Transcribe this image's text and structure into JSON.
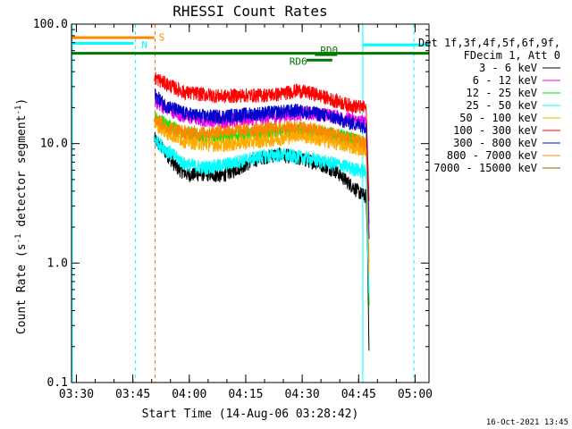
{
  "chart_data": {
    "type": "line",
    "title": "RHESSI Count Rates",
    "xlabel": "Start Time (14-Aug-06 03:28:42)",
    "ylabel_main": "Count Rate (s",
    "ylabel_sup1": "-1",
    "ylabel_mid": " detector segment",
    "ylabel_sup2": "-1",
    "ylabel_end": ")",
    "yscale": "log",
    "xlim_minutes": [
      0,
      95
    ],
    "ylim": [
      0.1,
      100
    ],
    "xticks": [
      {
        "label": "03:30",
        "m": 1.3
      },
      {
        "label": "03:45",
        "m": 16.3
      },
      {
        "label": "04:00",
        "m": 31.3
      },
      {
        "label": "04:15",
        "m": 46.3
      },
      {
        "label": "04:30",
        "m": 61.3
      },
      {
        "label": "04:45",
        "m": 76.3
      },
      {
        "label": "05:00",
        "m": 91.3
      }
    ],
    "yticks": [
      {
        "label": "100.0",
        "v": 100
      },
      {
        "label": "10.0",
        "v": 10
      },
      {
        "label": "1.0",
        "v": 1
      },
      {
        "label": "0.1",
        "v": 0.1
      }
    ],
    "legend_header": [
      "Det 1f,3f,4f,5f,6f,9f,",
      "FDecim 1, Att 0"
    ],
    "series": [
      {
        "name": "3 - 6 keV",
        "color": "#000000",
        "start": 21.8,
        "points": [
          [
            22,
            11
          ],
          [
            25,
            8.5
          ],
          [
            28,
            6.3
          ],
          [
            31,
            5.5
          ],
          [
            35,
            5.6
          ],
          [
            40,
            5.4
          ],
          [
            44,
            6.2
          ],
          [
            50,
            7.6
          ],
          [
            55,
            8.2
          ],
          [
            60,
            7.6
          ],
          [
            65,
            7.0
          ],
          [
            70,
            6.0
          ],
          [
            74,
            4.6
          ],
          [
            77,
            3.8
          ],
          [
            78.3,
            3.6
          ],
          [
            78.7,
            1.2
          ],
          [
            79.1,
            0.15
          ]
        ]
      },
      {
        "name": "6 - 12 keV",
        "color": "#ee00ee",
        "start": 22.2,
        "points": [
          [
            22,
            23
          ],
          [
            25,
            20
          ],
          [
            30,
            17
          ],
          [
            35,
            16
          ],
          [
            40,
            15.5
          ],
          [
            45,
            16
          ],
          [
            50,
            16.5
          ],
          [
            55,
            17
          ],
          [
            60,
            18
          ],
          [
            65,
            18
          ],
          [
            70,
            17
          ],
          [
            74,
            16
          ],
          [
            78.3,
            15
          ],
          [
            78.7,
            6
          ],
          [
            79.1,
            2
          ]
        ]
      },
      {
        "name": "12 - 25 keV",
        "color": "#00ee00",
        "start": 22.2,
        "points": [
          [
            22,
            17
          ],
          [
            25,
            14.5
          ],
          [
            30,
            12.5
          ],
          [
            35,
            11.5
          ],
          [
            40,
            11.5
          ],
          [
            45,
            12
          ],
          [
            50,
            12.3
          ],
          [
            55,
            12.5
          ],
          [
            60,
            13
          ],
          [
            65,
            12.5
          ],
          [
            70,
            12
          ],
          [
            74,
            11
          ],
          [
            78.3,
            10
          ],
          [
            78.7,
            3
          ],
          [
            79.1,
            0.4
          ]
        ]
      },
      {
        "name": "25 - 50 keV",
        "color": "#00ffff",
        "start": 22.0,
        "points": [
          [
            22,
            11
          ],
          [
            25,
            9
          ],
          [
            30,
            6.8
          ],
          [
            35,
            6.3
          ],
          [
            40,
            6.6
          ],
          [
            45,
            7.2
          ],
          [
            50,
            7.8
          ],
          [
            55,
            8.1
          ],
          [
            60,
            7.8
          ],
          [
            65,
            7.3
          ],
          [
            70,
            6.8
          ],
          [
            74,
            6.3
          ],
          [
            78.3,
            5.8
          ],
          [
            78.7,
            1.3
          ],
          [
            79.1,
            0.5
          ]
        ]
      },
      {
        "name": "50 - 100 keV",
        "color": "#ffaa00",
        "start": 22.0,
        "points": [
          [
            22,
            15
          ],
          [
            25,
            12.5
          ],
          [
            30,
            10.6
          ],
          [
            35,
            10
          ],
          [
            40,
            9.8
          ],
          [
            45,
            10.2
          ],
          [
            50,
            10.6
          ],
          [
            55,
            11
          ],
          [
            60,
            12
          ],
          [
            65,
            11
          ],
          [
            70,
            10.3
          ],
          [
            74,
            9.5
          ],
          [
            78.3,
            9
          ],
          [
            78.7,
            3
          ],
          [
            79.1,
            0.7
          ]
        ]
      },
      {
        "name": "100 - 300 keV",
        "color": "#ff0000",
        "start": 21.8,
        "points": [
          [
            22,
            36
          ],
          [
            25,
            32
          ],
          [
            30,
            27
          ],
          [
            35,
            26
          ],
          [
            40,
            25
          ],
          [
            45,
            25.5
          ],
          [
            50,
            25.5
          ],
          [
            55,
            26
          ],
          [
            60,
            28
          ],
          [
            65,
            26
          ],
          [
            70,
            23
          ],
          [
            74,
            21
          ],
          [
            78.3,
            20
          ],
          [
            78.7,
            8
          ],
          [
            79.1,
            3
          ]
        ]
      },
      {
        "name": "300 - 800 keV",
        "color": "#0000cc",
        "start": 22.2,
        "points": [
          [
            22,
            26
          ],
          [
            25,
            21
          ],
          [
            30,
            18
          ],
          [
            35,
            17
          ],
          [
            40,
            17
          ],
          [
            45,
            17.5
          ],
          [
            50,
            18
          ],
          [
            55,
            18.5
          ],
          [
            60,
            19
          ],
          [
            65,
            18
          ],
          [
            70,
            16.5
          ],
          [
            74,
            15
          ],
          [
            78.3,
            14
          ],
          [
            78.7,
            5
          ],
          [
            79.1,
            1.5
          ]
        ]
      },
      {
        "name": "800 - 7000 keV",
        "color": "#ff8800",
        "start": 22.0,
        "points": [
          [
            22,
            17
          ],
          [
            25,
            14
          ],
          [
            30,
            12.5
          ],
          [
            35,
            12.3
          ],
          [
            40,
            12.8
          ],
          [
            45,
            13
          ],
          [
            50,
            13.2
          ],
          [
            55,
            13.5
          ],
          [
            60,
            14
          ],
          [
            65,
            13
          ],
          [
            70,
            12
          ],
          [
            74,
            11
          ],
          [
            78.3,
            10
          ],
          [
            78.7,
            3
          ],
          [
            79.1,
            0.9
          ]
        ]
      },
      {
        "name": "7000 - 15000 keV",
        "color": "#996600",
        "start": 0,
        "points": []
      }
    ],
    "event_bars": [
      {
        "label": "S",
        "color": "#ff8800",
        "start": 0,
        "end": 22.0,
        "v": 77,
        "label_m": 23.2,
        "label_v": 78
      },
      {
        "label": "N",
        "color": "#00ffff",
        "start": 0,
        "end": 16.5,
        "v": 69,
        "label_m": 18.6,
        "label_v": 67
      },
      {
        "label": "N",
        "color": "#00ffff",
        "start": 77.3,
        "end": 95,
        "v": 67,
        "label_m": null,
        "label_v": null
      },
      {
        "label": "",
        "color": "#007700",
        "start": 0,
        "end": 95,
        "v": 57,
        "label_m": null,
        "label_v": null
      },
      {
        "label": "RD0",
        "color": "#007700",
        "start": 64.7,
        "end": 70.6,
        "v": 55.5,
        "label_m": 66.1,
        "label_v": 60.5
      },
      {
        "label": "RD6",
        "color": "#007700",
        "start": 62.4,
        "end": 69.3,
        "v": 50,
        "label_m": 57.9,
        "label_v": 49
      }
    ],
    "vlines": [
      {
        "m": 0.2,
        "color": "#00ffff",
        "dash": false
      },
      {
        "m": 17.0,
        "color": "#00ffff",
        "dash": true
      },
      {
        "m": 22.2,
        "color": "#ff6600",
        "dash": true
      },
      {
        "m": 77.4,
        "color": "#00ffff",
        "dash": false
      },
      {
        "m": 91.0,
        "color": "#00ffff",
        "dash": true
      }
    ],
    "timestamp": "16-Oct-2021 13:45"
  }
}
